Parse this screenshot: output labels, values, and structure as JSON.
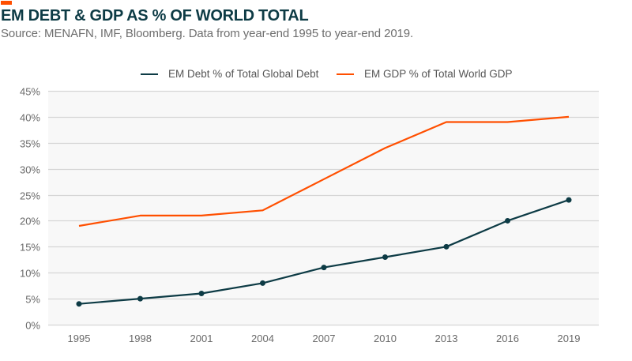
{
  "header": {
    "title": "EM DEBT & GDP AS % OF WORLD TOTAL",
    "subtitle": "Source: MENAFN, IMF, Bloomberg. Data from year-end 1995 to year-end 2019."
  },
  "colors": {
    "accent": "#ff4f00",
    "debt_series": "#0d3b45",
    "gdp_series": "#ff4f00",
    "plot_background": "#f8f8f8",
    "gridline": "#d6d6d6"
  },
  "chart_data": {
    "type": "line",
    "title": "EM DEBT & GDP AS % OF WORLD TOTAL",
    "subtitle": "Source: MENAFN, IMF, Bloomberg. Data from year-end 1995 to year-end 2019.",
    "xlabel": "",
    "ylabel": "",
    "categories": [
      "1995",
      "1998",
      "2001",
      "2004",
      "2007",
      "2010",
      "2013",
      "2016",
      "2019"
    ],
    "series": [
      {
        "name": "EM Debt % of Total Global Debt",
        "color": "#0d3b45",
        "markers": true,
        "values": [
          4,
          5,
          6,
          8,
          11,
          13,
          15,
          20,
          24
        ]
      },
      {
        "name": "EM GDP % of Total World GDP",
        "color": "#ff4f00",
        "markers": false,
        "values": [
          19,
          21,
          21,
          22,
          28,
          34,
          39,
          39,
          40
        ]
      }
    ],
    "ylim": [
      0,
      45
    ],
    "yticks": [
      0,
      5,
      10,
      15,
      20,
      25,
      30,
      35,
      40,
      45
    ],
    "ytick_labels": [
      "0%",
      "5%",
      "10%",
      "15%",
      "20%",
      "25%",
      "30%",
      "35%",
      "40%",
      "45%"
    ],
    "grid": true,
    "legend_position": "top-center"
  }
}
